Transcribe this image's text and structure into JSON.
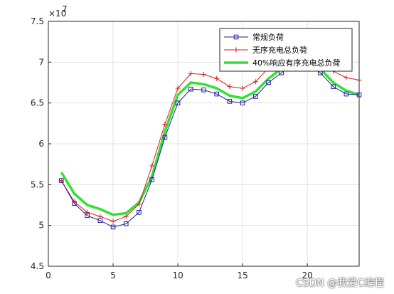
{
  "chart_data": {
    "type": "line",
    "title": "",
    "xlabel": "",
    "ylabel": "",
    "xlim": [
      0,
      24
    ],
    "ylim": [
      4.5,
      7.5
    ],
    "y_exponent_label": "×10",
    "y_exponent_power": "7",
    "grid": true,
    "legend_position": "top-right",
    "x_ticks": [
      0,
      5,
      10,
      15,
      20
    ],
    "y_ticks": [
      4.5,
      5,
      5.5,
      6,
      6.5,
      7,
      7.5
    ],
    "x": [
      1,
      2,
      3,
      4,
      5,
      6,
      7,
      8,
      9,
      10,
      11,
      12,
      13,
      14,
      15,
      16,
      17,
      18,
      19,
      20,
      21,
      22,
      23,
      24
    ],
    "series": [
      {
        "name": "常规负荷",
        "color": "#1f1f9f",
        "marker": "square",
        "values": [
          5.55,
          5.27,
          5.12,
          5.06,
          4.98,
          5.02,
          5.16,
          5.56,
          6.08,
          6.5,
          6.67,
          6.66,
          6.61,
          6.52,
          6.5,
          6.58,
          6.75,
          6.87,
          7.0,
          7.0,
          6.87,
          6.7,
          6.61,
          6.6
        ]
      },
      {
        "name": "无序充电总负荷",
        "color": "#d41f1f",
        "marker": "plus",
        "values": [
          5.55,
          5.29,
          5.16,
          5.11,
          5.05,
          5.11,
          5.26,
          5.73,
          6.24,
          6.68,
          6.86,
          6.85,
          6.8,
          6.7,
          6.68,
          6.76,
          6.93,
          7.0,
          7.05,
          7.08,
          6.98,
          6.89,
          6.81,
          6.78
        ]
      },
      {
        "name": "40%响应有序充电总负荷",
        "color": "#33e033",
        "marker": "none",
        "values": [
          5.65,
          5.39,
          5.25,
          5.2,
          5.13,
          5.15,
          5.28,
          5.6,
          6.15,
          6.6,
          6.75,
          6.73,
          6.68,
          6.59,
          6.56,
          6.64,
          6.8,
          6.92,
          7.0,
          7.02,
          6.92,
          6.75,
          6.65,
          6.6
        ]
      }
    ]
  },
  "watermark": "CSDN @我爱C编程"
}
